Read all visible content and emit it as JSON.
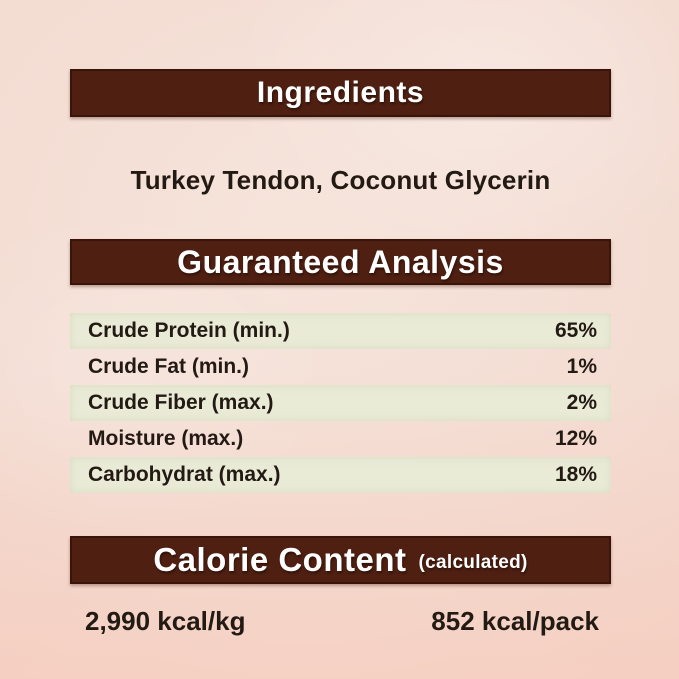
{
  "label": {
    "ingredients": {
      "title": "Ingredients",
      "content": "Turkey Tendon, Coconut Glycerin"
    },
    "guaranteed_analysis": {
      "title": "Guaranteed Analysis",
      "rows": [
        {
          "label": "Crude Protein (min.)",
          "value": "65%"
        },
        {
          "label": "Crude Fat (min.)",
          "value": "1%"
        },
        {
          "label": "Crude Fiber (max.)",
          "value": "2%"
        },
        {
          "label": "Moisture (max.)",
          "value": "12%"
        },
        {
          "label": "Carbohydrat (max.)",
          "value": "18%"
        }
      ]
    },
    "calorie_content": {
      "title": "Calorie Content",
      "subtitle": "(calculated)",
      "per_kg": "2,990 kcal/kg",
      "per_pack": "852 kcal/pack"
    },
    "colors": {
      "header_bg": "#4f2012",
      "header_text": "#ffffff",
      "row_highlight": "#e9ebd7",
      "body_text": "#231a14",
      "background": "#f3dcd2"
    }
  }
}
